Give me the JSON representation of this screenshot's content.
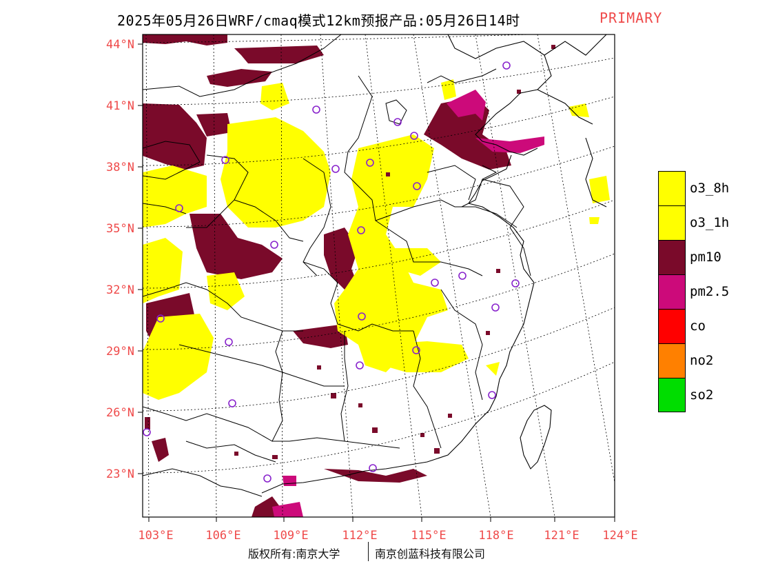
{
  "title": {
    "main": "2025年05月26日WRF/cmaq模式12km预报产品:05月26日14时",
    "tag": "PRIMARY",
    "tag_color": "#ef4a4a"
  },
  "map": {
    "lon_labels": [
      "103°E",
      "106°E",
      "109°E",
      "112°E",
      "115°E",
      "118°E",
      "121°E",
      "124°E"
    ],
    "lat_labels": [
      "44°N",
      "41°N",
      "38°N",
      "35°N",
      "32°N",
      "29°N",
      "26°N",
      "23°N"
    ],
    "axis_label_color": "#ef4a4a",
    "pollutant_colors": {
      "o3_8h": "#ffff00",
      "o3_1h": "#ffff00",
      "pm10": "#7a0a2a",
      "pm2.5": "#cc0a7a",
      "co": "#ff0000",
      "no2": "#ff8000",
      "so2": "#00dd00"
    },
    "station_marker_color": "#8822cc"
  },
  "legend": [
    {
      "key": "o3_8h",
      "label": "o3_8h",
      "color": "#ffff00"
    },
    {
      "key": "o3_1h",
      "label": "o3_1h",
      "color": "#ffff00"
    },
    {
      "key": "pm10",
      "label": "pm10",
      "color": "#7a0a2a"
    },
    {
      "key": "pm25",
      "label": "pm2.5",
      "color": "#cc0a7a"
    },
    {
      "key": "co",
      "label": "co",
      "color": "#ff0000"
    },
    {
      "key": "no2",
      "label": "no2",
      "color": "#ff8000"
    },
    {
      "key": "so2",
      "label": "so2",
      "color": "#00dd00"
    }
  ],
  "copyright": {
    "left": "版权所有:南京大学",
    "right": "南京创蓝科技有限公司"
  }
}
